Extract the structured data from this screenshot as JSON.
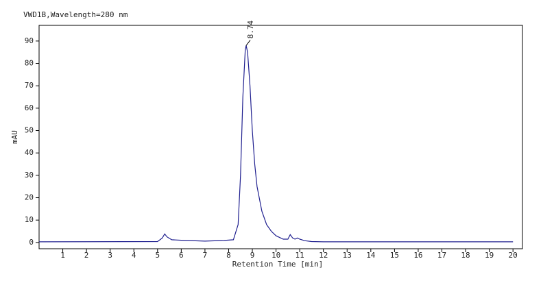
{
  "chart_data": {
    "type": "line",
    "title": "VWD1B,Wavelength=280 nm",
    "x_label": "Retention Time [min]",
    "y_label": "mAU",
    "annotations": [
      "8.74"
    ],
    "series": [
      {
        "color": "#1f1f8f",
        "x": [
          0,
          5.0,
          5.2,
          5.3,
          5.4,
          5.6,
          6.0,
          7.0,
          7.8,
          8.2,
          8.4,
          8.5,
          8.6,
          8.7,
          8.74,
          8.8,
          8.9,
          9.0,
          9.1,
          9.2,
          9.4,
          9.6,
          9.8,
          10.0,
          10.3,
          10.5,
          10.6,
          10.7,
          10.8,
          10.9,
          11.0,
          11.2,
          11.5,
          12,
          20
        ],
        "values": [
          0.3,
          0.4,
          2,
          3.8,
          2.5,
          1.2,
          1.0,
          0.6,
          0.9,
          1.2,
          8,
          30,
          65,
          86,
          88,
          85,
          70,
          50,
          35,
          25,
          14,
          8,
          5,
          3,
          1.5,
          1.5,
          3.5,
          2,
          1.5,
          2,
          1.5,
          0.8,
          0.4,
          0.3,
          0.3
        ]
      }
    ],
    "xlim": [
      0,
      20.4
    ],
    "ylim": [
      -2.8,
      97
    ],
    "xticks": [
      1,
      2,
      3,
      4,
      5,
      6,
      7,
      8,
      9,
      10,
      11,
      12,
      13,
      14,
      15,
      16,
      17,
      18,
      19,
      20
    ],
    "yticks": [
      0,
      10,
      20,
      30,
      40,
      50,
      60,
      70,
      80,
      90
    ]
  }
}
